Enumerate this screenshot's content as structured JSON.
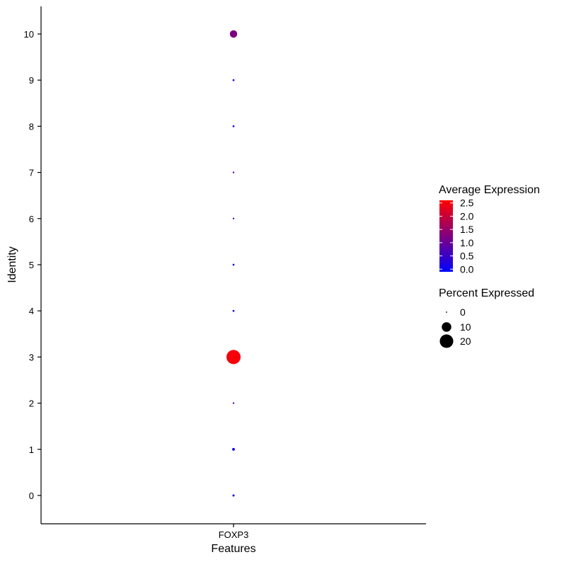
{
  "chart_data": {
    "type": "scatter",
    "xlabel": "Features",
    "ylabel": "Identity",
    "categories": [
      "FOXP3"
    ],
    "identities": [
      "0",
      "1",
      "2",
      "3",
      "4",
      "5",
      "6",
      "7",
      "8",
      "9",
      "10"
    ],
    "points": [
      {
        "feature": "FOXP3",
        "identity": "0",
        "avg_exp": 0.05,
        "pct": 0.5
      },
      {
        "feature": "FOXP3",
        "identity": "1",
        "avg_exp": 0.0,
        "pct": 0.8
      },
      {
        "feature": "FOXP3",
        "identity": "2",
        "avg_exp": 0.8,
        "pct": 0.3
      },
      {
        "feature": "FOXP3",
        "identity": "3",
        "avg_exp": 2.5,
        "pct": 22
      },
      {
        "feature": "FOXP3",
        "identity": "4",
        "avg_exp": 0.05,
        "pct": 0.4
      },
      {
        "feature": "FOXP3",
        "identity": "5",
        "avg_exp": 0.05,
        "pct": 0.4
      },
      {
        "feature": "FOXP3",
        "identity": "6",
        "avg_exp": 0.8,
        "pct": 0.3
      },
      {
        "feature": "FOXP3",
        "identity": "7",
        "avg_exp": 0.8,
        "pct": 0.3
      },
      {
        "feature": "FOXP3",
        "identity": "8",
        "avg_exp": 0.05,
        "pct": 0.4
      },
      {
        "feature": "FOXP3",
        "identity": "9",
        "avg_exp": 0.05,
        "pct": 0.4
      },
      {
        "feature": "FOXP3",
        "identity": "10",
        "avg_exp": 1.2,
        "pct": 6
      }
    ],
    "color_legend": {
      "title": "Average Expression",
      "ticks": [
        "2.5",
        "2.0",
        "1.5",
        "1.0",
        "0.5",
        "0.0"
      ],
      "low_color": "#0000FF",
      "high_color": "#FF0000",
      "range": [
        -0.1,
        2.6
      ]
    },
    "size_legend": {
      "title": "Percent Expressed",
      "entries": [
        {
          "label": "0",
          "value": 0
        },
        {
          "label": "10",
          "value": 10
        },
        {
          "label": "20",
          "value": 20
        }
      ]
    },
    "grid": false
  }
}
